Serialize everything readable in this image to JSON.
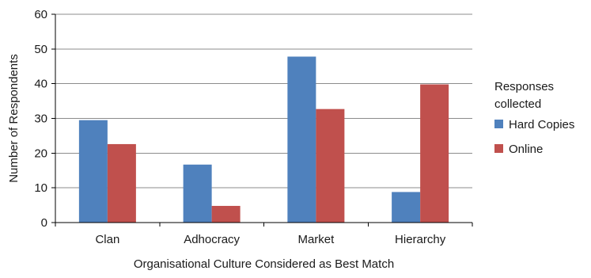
{
  "chart_data": {
    "type": "bar",
    "title": "",
    "xlabel": "Organisational Culture Considered as  Best Match",
    "ylabel": "Number of Respondents",
    "categories": [
      "Clan",
      "Adhocracy",
      "Market",
      "Hierarchy"
    ],
    "series": [
      {
        "name": "Hard Copies",
        "values": [
          29.5,
          16.7,
          47.8,
          8.8
        ],
        "color": "#4f81bd"
      },
      {
        "name": "Online",
        "values": [
          22.6,
          4.8,
          32.7,
          39.8
        ],
        "color": "#c0504d"
      }
    ],
    "ylim": [
      0,
      60
    ],
    "yticks": [
      0,
      10,
      20,
      30,
      40,
      50,
      60
    ],
    "grid": true,
    "legend": {
      "title_lines": [
        "Responses",
        "collected"
      ],
      "placement": "right"
    }
  }
}
